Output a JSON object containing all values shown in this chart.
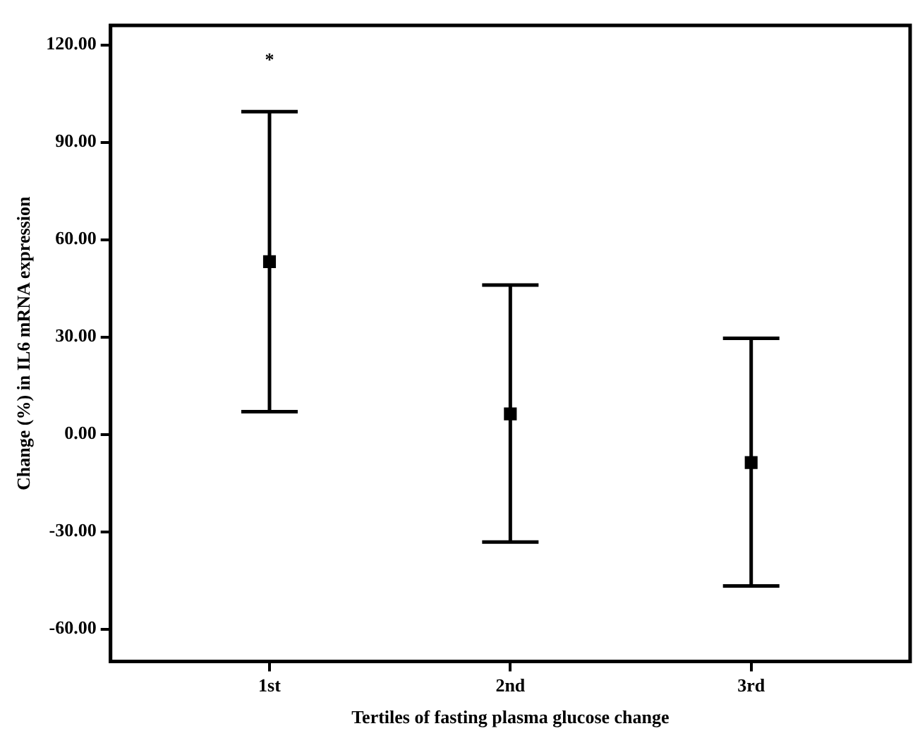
{
  "chart_data": {
    "type": "scatter",
    "xlabel": "Tertiles of fasting plasma glucose change",
    "ylabel": "Change (%) in IL6 mRNA expression",
    "categories": [
      "1st",
      "2nd",
      "3rd"
    ],
    "series": [
      {
        "color": "#000000",
        "values": [
          53.2,
          6.3,
          -8.7
        ],
        "errors": [
          [
            7.0,
            99.4
          ],
          [
            -33.2,
            46.0
          ],
          [
            -46.7,
            29.6
          ]
        ]
      }
    ],
    "ylim": [
      -70,
      126
    ],
    "yticks": [
      {
        "value": -60,
        "label": "-60.00"
      },
      {
        "value": -30,
        "label": "-30.00"
      },
      {
        "value": 0,
        "label": "0.00"
      },
      {
        "value": 30,
        "label": "30.00"
      },
      {
        "value": 60,
        "label": "60.00"
      },
      {
        "value": 90,
        "label": "90.00"
      },
      {
        "value": 120,
        "label": "120.00"
      }
    ],
    "annotations": [
      "*"
    ],
    "marker": "square",
    "grid": false,
    "legend": false
  }
}
